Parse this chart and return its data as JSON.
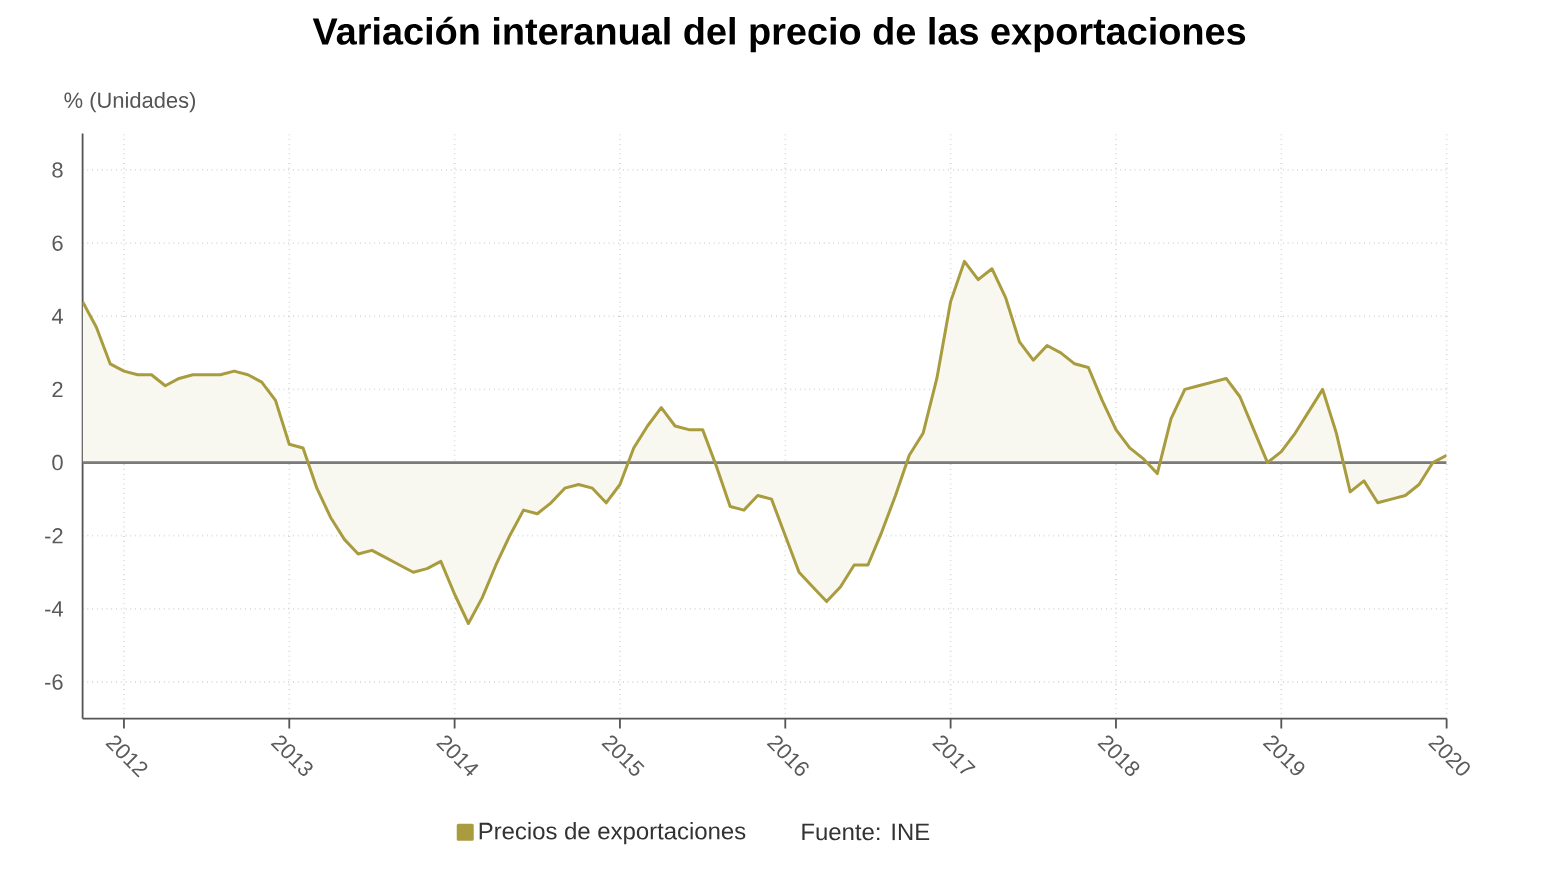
{
  "chart_data": {
    "type": "area",
    "title": "Variación interanual del precio de las exportaciones",
    "ylabel": "% (Unidades)",
    "x": [
      "2011-10",
      "2011-11",
      "2011-12",
      "2012-01",
      "2012-02",
      "2012-03",
      "2012-04",
      "2012-05",
      "2012-06",
      "2012-07",
      "2012-08",
      "2012-09",
      "2012-10",
      "2012-11",
      "2012-12",
      "2013-01",
      "2013-02",
      "2013-03",
      "2013-04",
      "2013-05",
      "2013-06",
      "2013-07",
      "2013-08",
      "2013-09",
      "2013-10",
      "2013-11",
      "2013-12",
      "2014-01",
      "2014-02",
      "2014-03",
      "2014-04",
      "2014-05",
      "2014-06",
      "2014-07",
      "2014-08",
      "2014-09",
      "2014-10",
      "2014-11",
      "2014-12",
      "2015-01",
      "2015-02",
      "2015-03",
      "2015-04",
      "2015-05",
      "2015-06",
      "2015-07",
      "2015-08",
      "2015-09",
      "2015-10",
      "2015-11",
      "2015-12",
      "2016-01",
      "2016-02",
      "2016-03",
      "2016-04",
      "2016-05",
      "2016-06",
      "2016-07",
      "2016-08",
      "2016-09",
      "2016-10",
      "2016-11",
      "2016-12",
      "2017-01",
      "2017-02",
      "2017-03",
      "2017-04",
      "2017-05",
      "2017-06",
      "2017-07",
      "2017-08",
      "2017-09",
      "2017-10",
      "2017-11",
      "2017-12",
      "2018-01",
      "2018-02",
      "2018-03",
      "2018-04",
      "2018-05",
      "2018-06",
      "2018-07",
      "2018-08",
      "2018-09",
      "2018-10",
      "2018-11",
      "2018-12",
      "2019-01",
      "2019-02",
      "2019-03",
      "2019-04",
      "2019-05",
      "2019-06",
      "2019-07",
      "2019-08",
      "2019-09",
      "2019-10",
      "2019-11",
      "2019-12",
      "2020-01"
    ],
    "series": [
      {
        "name": "Precios de exportaciones",
        "color": "#a99c3f",
        "values": [
          4.4,
          3.7,
          2.7,
          2.5,
          2.4,
          2.4,
          2.1,
          2.3,
          2.4,
          2.4,
          2.4,
          2.5,
          2.4,
          2.2,
          1.7,
          0.5,
          0.4,
          -0.7,
          -1.5,
          -2.1,
          -2.5,
          -2.4,
          -2.6,
          -2.8,
          -3.0,
          -2.9,
          -2.7,
          -3.6,
          -4.4,
          -3.7,
          -2.8,
          -2.0,
          -1.3,
          -1.4,
          -1.1,
          -0.7,
          -0.6,
          -0.7,
          -1.1,
          -0.6,
          0.4,
          1.0,
          1.5,
          1.0,
          0.9,
          0.9,
          -0.1,
          -1.2,
          -1.3,
          -0.9,
          -1.0,
          -2.0,
          -3.0,
          -3.4,
          -3.8,
          -3.4,
          -2.8,
          -2.8,
          -1.9,
          -0.9,
          0.2,
          0.8,
          2.3,
          4.4,
          5.5,
          5.0,
          5.3,
          4.5,
          3.3,
          2.8,
          3.2,
          3.0,
          2.7,
          2.6,
          1.7,
          0.9,
          0.4,
          0.1,
          -0.3,
          1.2,
          2.0,
          2.1,
          2.2,
          2.3,
          1.8,
          0.9,
          0.0,
          0.3,
          0.8,
          1.4,
          2.0,
          0.8,
          -0.8,
          -0.5,
          -1.1,
          -1.0,
          -0.9,
          -0.6,
          0.0,
          0.2
        ]
      }
    ],
    "xlim": [
      "2011-10",
      "2020-01"
    ],
    "xticks": [
      "2012",
      "2013",
      "2014",
      "2015",
      "2016",
      "2017",
      "2018",
      "2019",
      "2020"
    ],
    "ylim": [
      -7,
      9
    ],
    "yticks": [
      -6,
      -4,
      -2,
      0,
      2,
      4,
      6,
      8
    ],
    "grid": true,
    "legend": "bottom",
    "ref_lines": [
      {
        "axis": "y",
        "value": 0,
        "color": "#7a7a7a"
      }
    ],
    "annotations": [
      "Fuente: INE"
    ]
  }
}
